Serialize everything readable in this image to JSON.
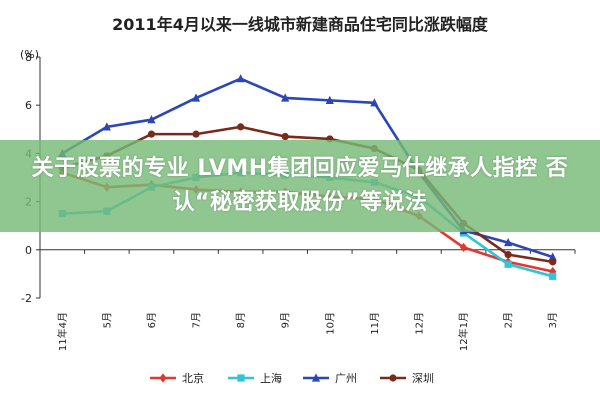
{
  "chart_data": {
    "type": "line",
    "title": "2011年4月以来一线城市新建商品住宅同比涨跌幅度",
    "ylabel": "(%)",
    "xlabel": "",
    "ylim": [
      -2,
      8
    ],
    "yticks": [
      -2,
      0,
      2,
      4,
      6,
      8
    ],
    "categories": [
      "11年4月",
      "5月",
      "6月",
      "7月",
      "8月",
      "9月",
      "10月",
      "11月",
      "12月",
      "12年1月",
      "2月",
      "3月"
    ],
    "grid": false,
    "legend": "bottom",
    "series": [
      {
        "name": "北京",
        "color": "#e0382f",
        "marker": "diamond",
        "values": [
          3.2,
          2.6,
          2.7,
          2.5,
          2.4,
          2.4,
          2.2,
          2.1,
          1.4,
          0.1,
          -0.5,
          -0.9
        ]
      },
      {
        "name": "上海",
        "color": "#2fc4d6",
        "marker": "square",
        "values": [
          1.5,
          1.6,
          2.6,
          3.0,
          3.2,
          3.1,
          3.0,
          2.8,
          2.2,
          0.7,
          -0.6,
          -1.1
        ]
      },
      {
        "name": "广州",
        "color": "#2a46b8",
        "marker": "triangle",
        "values": [
          4.0,
          5.1,
          5.4,
          6.3,
          7.1,
          6.3,
          6.2,
          6.1,
          3.2,
          0.8,
          0.3,
          -0.3
        ]
      },
      {
        "name": "深圳",
        "color": "#7a2a1a",
        "marker": "circle",
        "values": [
          3.4,
          3.9,
          4.8,
          4.8,
          5.1,
          4.7,
          4.6,
          4.2,
          3.3,
          1.1,
          -0.2,
          -0.5
        ]
      }
    ]
  },
  "banner": {
    "text": "关于股票的专业 LVMH集团回应爱马仕继承人指控 否认“秘密获取股份”等说法"
  }
}
